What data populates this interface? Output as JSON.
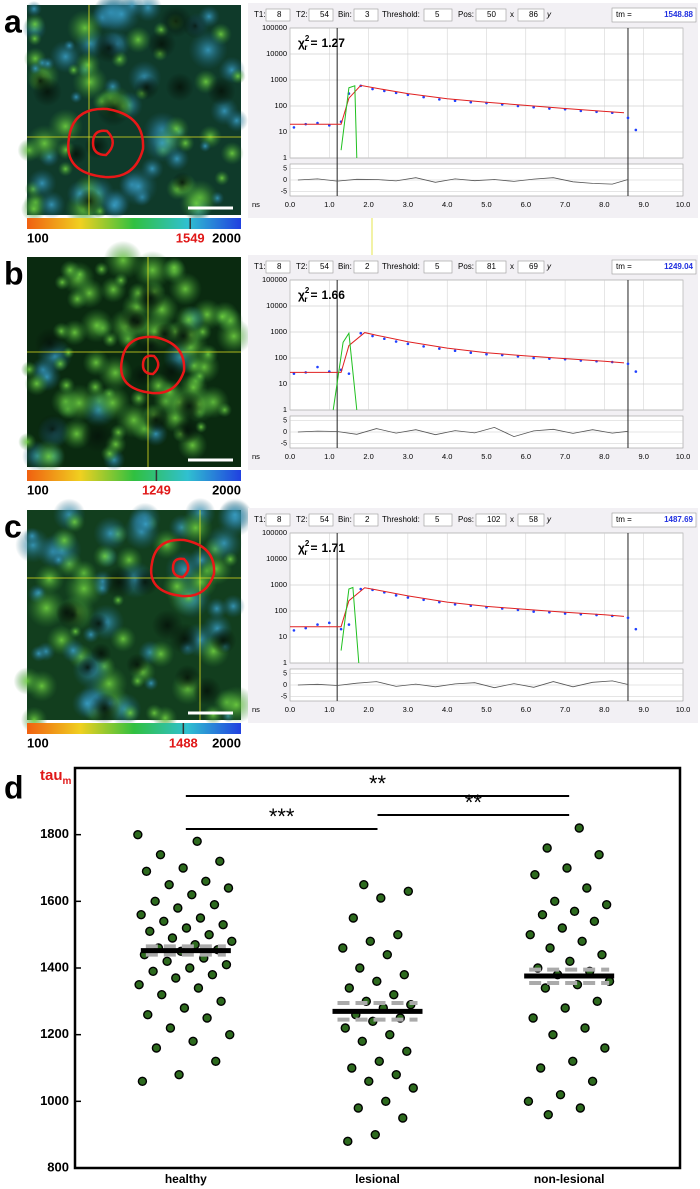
{
  "chart_data": [
    {
      "type": "line",
      "panel_label": "a",
      "controls": [
        {
          "label": "T1:",
          "value": 8
        },
        {
          "label": "T2:",
          "value": 54
        },
        {
          "label": "Bin:",
          "value": 3
        },
        {
          "label": "Threshold:",
          "value": 5
        },
        {
          "label": "Pos:",
          "value": 50
        },
        {
          "label": "x",
          "value": 86
        }
      ],
      "y_label": "y",
      "tm_label": "tm =",
      "tm": 1548.88,
      "chi_symbol": "χ",
      "chi_sup": 2,
      "chi_sub": "r",
      "chi_eq": "=",
      "chi_value": 1.27,
      "colorbar": {
        "min": 100,
        "max": 2000,
        "marker": 1549
      },
      "log_y": true,
      "xlim": [
        0,
        10
      ],
      "xticks": [
        {
          "value": 0,
          "label": "0.0"
        },
        {
          "value": 1,
          "label": "1.0"
        },
        {
          "value": 2,
          "label": "2.0"
        },
        {
          "value": 3,
          "label": "3.0"
        },
        {
          "value": 4,
          "label": "4.0"
        },
        {
          "value": 5,
          "label": "5.0"
        },
        {
          "value": 6,
          "label": "6.0"
        },
        {
          "value": 7,
          "label": "7.0"
        },
        {
          "value": 8,
          "label": "8.0"
        },
        {
          "value": 9,
          "label": "9.0"
        },
        {
          "value": 10,
          "label": "10.0"
        }
      ],
      "xunit": "ns",
      "ylim": [
        1,
        100000
      ],
      "yticks": [
        1,
        10,
        100,
        1000,
        10000,
        100000
      ],
      "y2lim": [
        -7,
        7
      ],
      "y2ticks": [
        5,
        0,
        -5
      ],
      "window": [
        1.2,
        8.6
      ],
      "series": [
        {
          "style": "points",
          "color": "#2040ff",
          "x": [
            0.1,
            0.4,
            0.7,
            1.0,
            1.3,
            1.5,
            1.8,
            2.1,
            2.4,
            2.7,
            3.0,
            3.4,
            3.8,
            4.2,
            4.6,
            5.0,
            5.4,
            5.8,
            6.2,
            6.6,
            7.0,
            7.4,
            7.8,
            8.2,
            8.6,
            8.8
          ],
          "values": [
            15,
            20,
            22,
            18,
            25,
            300,
            600,
            450,
            380,
            320,
            270,
            220,
            180,
            160,
            140,
            130,
            115,
            100,
            90,
            80,
            75,
            65,
            60,
            55,
            35,
            12
          ]
        },
        {
          "style": "line",
          "color": "#e02020",
          "x": [
            0,
            1.3,
            1.5,
            1.8,
            2.2,
            3,
            4,
            5,
            6,
            7,
            8,
            8.5
          ],
          "values": [
            20,
            20,
            200,
            620,
            480,
            300,
            190,
            140,
            105,
            80,
            62,
            55
          ]
        },
        {
          "style": "line",
          "color": "#20c020",
          "x": [
            1.3,
            1.5,
            1.65,
            1.7
          ],
          "values": [
            2,
            500,
            600,
            1
          ]
        },
        {
          "style": "line",
          "color": "#555555",
          "axis": "y2",
          "x": [
            0.2,
            0.7,
            1.2,
            1.7,
            2.2,
            2.7,
            3.2,
            3.7,
            4.2,
            4.7,
            5.2,
            5.7,
            6.2,
            6.7,
            7.2,
            7.7,
            8.2,
            8.6
          ],
          "values": [
            0,
            0.5,
            -0.5,
            0.3,
            0.2,
            -0.4,
            1,
            -1,
            0.5,
            -0.3,
            0.2,
            -0.6,
            0.4,
            1,
            -0.8,
            -1.5,
            -1.8,
            0.2
          ]
        }
      ]
    },
    {
      "type": "line",
      "panel_label": "b",
      "controls": [
        {
          "label": "T1:",
          "value": 8
        },
        {
          "label": "T2:",
          "value": 54
        },
        {
          "label": "Bin:",
          "value": 2
        },
        {
          "label": "Threshold:",
          "value": 5
        },
        {
          "label": "Pos:",
          "value": 81
        },
        {
          "label": "x",
          "value": 69
        }
      ],
      "y_label": "y",
      "tm_label": "tm =",
      "tm": 1249.04,
      "chi_symbol": "χ",
      "chi_sup": 2,
      "chi_sub": "r",
      "chi_eq": "=",
      "chi_value": 1.66,
      "colorbar": {
        "min": 100,
        "max": 2000,
        "marker": 1249
      },
      "log_y": true,
      "xlim": [
        0,
        10
      ],
      "xticks": [
        {
          "value": 0,
          "label": "0.0"
        },
        {
          "value": 1,
          "label": "1.0"
        },
        {
          "value": 2,
          "label": "2.0"
        },
        {
          "value": 3,
          "label": "3.0"
        },
        {
          "value": 4,
          "label": "4.0"
        },
        {
          "value": 5,
          "label": "5.0"
        },
        {
          "value": 6,
          "label": "6.0"
        },
        {
          "value": 7,
          "label": "7.0"
        },
        {
          "value": 8,
          "label": "8.0"
        },
        {
          "value": 9,
          "label": "9.0"
        },
        {
          "value": 10,
          "label": "10.0"
        }
      ],
      "xunit": "ns",
      "ylim": [
        1,
        100000
      ],
      "yticks": [
        1,
        10,
        100,
        1000,
        10000,
        100000
      ],
      "y2lim": [
        -7,
        7
      ],
      "y2ticks": [
        5,
        0,
        -5
      ],
      "window": [
        1.2,
        8.6
      ],
      "series": [
        {
          "style": "points",
          "color": "#2040ff",
          "x": [
            0.1,
            0.4,
            0.7,
            1.0,
            1.3,
            1.5,
            1.8,
            2.1,
            2.4,
            2.7,
            3.0,
            3.4,
            3.8,
            4.2,
            4.6,
            5.0,
            5.4,
            5.8,
            6.2,
            6.6,
            7.0,
            7.4,
            7.8,
            8.2,
            8.6,
            8.8
          ],
          "values": [
            25,
            28,
            45,
            30,
            35,
            25,
            900,
            700,
            550,
            430,
            350,
            280,
            230,
            190,
            160,
            140,
            130,
            115,
            100,
            95,
            90,
            80,
            75,
            70,
            60,
            30
          ]
        },
        {
          "style": "line",
          "color": "#e02020",
          "x": [
            0,
            1.3,
            1.5,
            1.9,
            2.2,
            3,
            4,
            5,
            6,
            7,
            8,
            8.5
          ],
          "values": [
            28,
            28,
            300,
            950,
            750,
            420,
            240,
            160,
            120,
            95,
            75,
            65
          ]
        },
        {
          "style": "line",
          "color": "#20c020",
          "x": [
            1.1,
            1.35,
            1.5,
            1.7
          ],
          "values": [
            1,
            400,
            900,
            1
          ]
        },
        {
          "style": "line",
          "color": "#555555",
          "axis": "y2",
          "x": [
            0.2,
            0.7,
            1.2,
            1.7,
            2.2,
            2.7,
            3.2,
            3.7,
            4.2,
            4.7,
            5.2,
            5.7,
            6.2,
            6.7,
            7.2,
            7.7,
            8.2,
            8.6
          ],
          "values": [
            0,
            0.4,
            0.2,
            -1,
            1.5,
            -0.5,
            1,
            -1.2,
            0.6,
            -0.4,
            2,
            -2,
            0.5,
            1.2,
            -0.6,
            1,
            -0.5,
            0.3
          ]
        }
      ]
    },
    {
      "type": "line",
      "panel_label": "c",
      "controls": [
        {
          "label": "T1:",
          "value": 8
        },
        {
          "label": "T2:",
          "value": 54
        },
        {
          "label": "Bin:",
          "value": 2
        },
        {
          "label": "Threshold:",
          "value": 5
        },
        {
          "label": "Pos:",
          "value": 102
        },
        {
          "label": "x",
          "value": 58
        }
      ],
      "y_label": "y",
      "tm_label": "tm =",
      "tm": 1487.69,
      "chi_symbol": "χ",
      "chi_sup": 2,
      "chi_sub": "r",
      "chi_eq": "=",
      "chi_value": 1.71,
      "colorbar": {
        "min": 100,
        "max": 2000,
        "marker": 1488
      },
      "log_y": true,
      "xlim": [
        0,
        10
      ],
      "xticks": [
        {
          "value": 0,
          "label": "0.0"
        },
        {
          "value": 1,
          "label": "1.0"
        },
        {
          "value": 2,
          "label": "2.0"
        },
        {
          "value": 3,
          "label": "3.0"
        },
        {
          "value": 4,
          "label": "4.0"
        },
        {
          "value": 5,
          "label": "5.0"
        },
        {
          "value": 6,
          "label": "6.0"
        },
        {
          "value": 7,
          "label": "7.0"
        },
        {
          "value": 8,
          "label": "8.0"
        },
        {
          "value": 9,
          "label": "9.0"
        },
        {
          "value": 10,
          "label": "10.0"
        }
      ],
      "xunit": "ns",
      "ylim": [
        1,
        100000
      ],
      "yticks": [
        1,
        10,
        100,
        1000,
        10000,
        100000
      ],
      "y2lim": [
        -7,
        7
      ],
      "y2ticks": [
        5,
        0,
        -5
      ],
      "window": [
        1.2,
        8.6
      ],
      "series": [
        {
          "style": "points",
          "color": "#2040ff",
          "x": [
            0.1,
            0.4,
            0.7,
            1.0,
            1.3,
            1.5,
            1.8,
            2.1,
            2.4,
            2.7,
            3.0,
            3.4,
            3.8,
            4.2,
            4.6,
            5.0,
            5.4,
            5.8,
            6.2,
            6.6,
            7.0,
            7.4,
            7.8,
            8.2,
            8.6,
            8.8
          ],
          "values": [
            18,
            22,
            30,
            35,
            20,
            30,
            700,
            650,
            520,
            400,
            330,
            270,
            220,
            180,
            160,
            140,
            125,
            110,
            95,
            90,
            80,
            75,
            70,
            65,
            55,
            20
          ]
        },
        {
          "style": "line",
          "color": "#e02020",
          "x": [
            0,
            1.3,
            1.5,
            1.9,
            2.2,
            3,
            4,
            5,
            6,
            7,
            8,
            8.5
          ],
          "values": [
            25,
            25,
            250,
            780,
            650,
            380,
            220,
            150,
            115,
            90,
            72,
            62
          ]
        },
        {
          "style": "line",
          "color": "#20c020",
          "x": [
            1.3,
            1.5,
            1.6,
            1.75
          ],
          "values": [
            3,
            700,
            800,
            1
          ]
        },
        {
          "style": "line",
          "color": "#555555",
          "axis": "y2",
          "x": [
            0.2,
            0.7,
            1.2,
            1.7,
            2.2,
            2.7,
            3.2,
            3.7,
            4.2,
            4.7,
            5.2,
            5.7,
            6.2,
            6.7,
            7.2,
            7.7,
            8.2,
            8.6
          ],
          "values": [
            0,
            0.3,
            -0.2,
            0.8,
            1.5,
            -0.6,
            0.4,
            -0.8,
            0.5,
            1,
            -1.2,
            0.6,
            -1,
            1.5,
            -0.8,
            1.2,
            1.8,
            0.2
          ]
        }
      ]
    },
    {
      "type": "strip",
      "panel_label": "d",
      "ylabel": "tau",
      "ylabel_subscript": "m",
      "ylim": [
        800,
        2000
      ],
      "yticks": [
        800,
        1000,
        1200,
        1400,
        1600,
        1800
      ],
      "categories": [
        "healthy",
        "lesional",
        "non-lesional"
      ],
      "point_color": "#2d6a1e",
      "groups": [
        {
          "values": [
            1800,
            1780,
            1740,
            1720,
            1700,
            1690,
            1660,
            1650,
            1640,
            1620,
            1600,
            1590,
            1580,
            1560,
            1550,
            1540,
            1530,
            1520,
            1510,
            1500,
            1490,
            1480,
            1470,
            1460,
            1455,
            1450,
            1440,
            1430,
            1420,
            1410,
            1400,
            1390,
            1380,
            1370,
            1350,
            1340,
            1320,
            1300,
            1280,
            1260,
            1250,
            1220,
            1200,
            1180,
            1160,
            1120,
            1080,
            1060
          ],
          "mean": 1452,
          "ci_low": 1440,
          "ci_high": 1465
        },
        {
          "values": [
            1650,
            1630,
            1610,
            1550,
            1500,
            1480,
            1460,
            1440,
            1400,
            1380,
            1360,
            1340,
            1320,
            1300,
            1290,
            1280,
            1260,
            1250,
            1240,
            1220,
            1200,
            1180,
            1150,
            1120,
            1100,
            1080,
            1060,
            1040,
            1000,
            980,
            950,
            900,
            880
          ],
          "mean": 1270,
          "ci_low": 1245,
          "ci_high": 1295
        },
        {
          "values": [
            1820,
            1760,
            1740,
            1700,
            1680,
            1640,
            1600,
            1590,
            1570,
            1560,
            1540,
            1520,
            1500,
            1480,
            1460,
            1440,
            1420,
            1400,
            1390,
            1380,
            1360,
            1350,
            1340,
            1300,
            1280,
            1250,
            1220,
            1200,
            1160,
            1120,
            1100,
            1060,
            1020,
            1000,
            980,
            960
          ],
          "mean": 1376,
          "ci_low": 1355,
          "ci_high": 1395
        }
      ],
      "annotations": [
        {
          "text": "**",
          "from": "healthy",
          "to": "non-lesional"
        },
        {
          "text": "***",
          "from": "healthy",
          "to": "lesional"
        },
        {
          "text": "**",
          "from": "lesional",
          "to": "non-lesional"
        }
      ]
    }
  ]
}
